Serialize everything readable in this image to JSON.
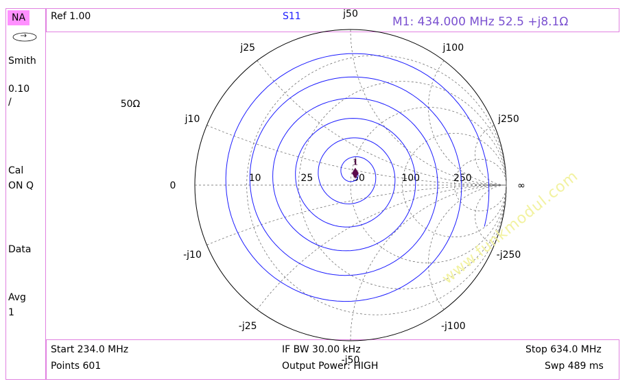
{
  "sidebar": {
    "mode": "NA",
    "format": "Smith",
    "scale": "0.10",
    "scale_unit": "/",
    "cal_label": "Cal",
    "cal_state": "ON Q",
    "data_label": "Data",
    "avg_label": "Avg",
    "avg_value": "1"
  },
  "header": {
    "ref": "Ref 1.00",
    "trace": "S11",
    "marker_readout": "M1:  434.000 MHz  52.5 +j8.1Ω"
  },
  "footer": {
    "start": "Start 234.0 MHz",
    "points": "Points 601",
    "if_bw": "IF BW 30.00 kHz",
    "power": "Output Power: HIGH",
    "stop": "Stop 634.0 MHz",
    "sweep": "Swp 489 ms"
  },
  "watermark": "www.funkmodul.com",
  "colors": {
    "trace": "#1a1aff",
    "marker": "#5a0a4a",
    "frame": "#e080e0",
    "grid": "#606060"
  },
  "chart_data": {
    "type": "smith",
    "reference_impedance": "50Ω",
    "reference_label": "50Ω",
    "resistance_circles": [
      10,
      25,
      50,
      100,
      250
    ],
    "reactance_arcs": [
      10,
      25,
      50,
      100,
      250,
      -10,
      -25,
      -50,
      -100,
      -250
    ],
    "labels": {
      "zero": "0",
      "infinity": "∞",
      "resistance": [
        "10",
        "25",
        "50",
        "100",
        "250"
      ],
      "reactance_pos": [
        "j10",
        "j25",
        "j50",
        "j100",
        "j250"
      ],
      "reactance_neg": [
        "-j10",
        "-j25",
        "-j50",
        "-j100",
        "-j250"
      ]
    },
    "start_frequency_mhz": 234.0,
    "stop_frequency_mhz": 634.0,
    "points": 601,
    "markers": [
      {
        "id": "1",
        "frequency_mhz": 434.0,
        "r_ohm": 52.5,
        "x_ohm": 8.1
      }
    ]
  }
}
